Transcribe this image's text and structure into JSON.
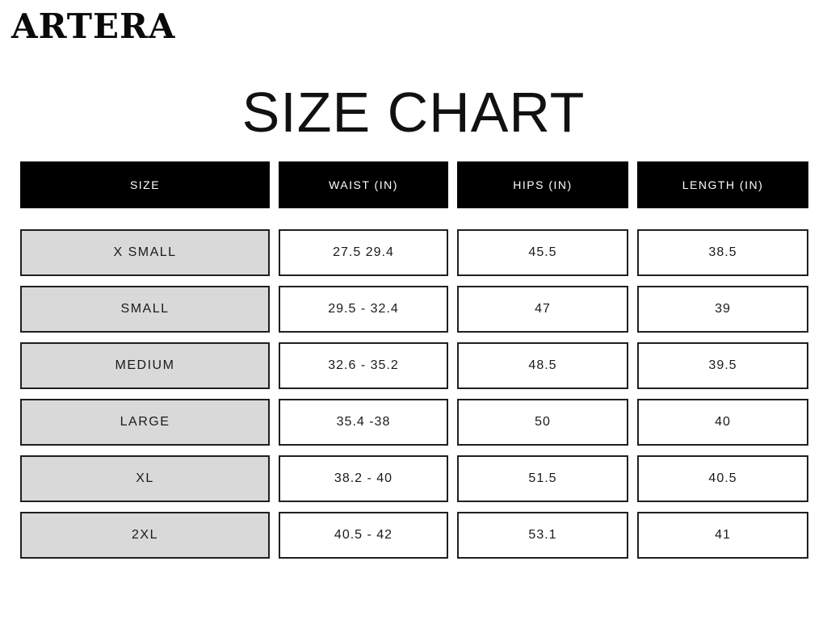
{
  "brand": {
    "logo": "ARTERA"
  },
  "page": {
    "title": "SIZE CHART"
  },
  "table": {
    "columns": [
      "SIZE",
      "WAIST (IN)",
      "HIPS (IN)",
      "LENGTH (IN)"
    ],
    "rows": [
      {
        "size": "X SMALL",
        "waist": "27.5 29.4",
        "hips": "45.5",
        "length": "38.5"
      },
      {
        "size": "SMALL",
        "waist": "29.5 - 32.4",
        "hips": "47",
        "length": "39"
      },
      {
        "size": "MEDIUM",
        "waist": "32.6 - 35.2",
        "hips": "48.5",
        "length": "39.5"
      },
      {
        "size": "LARGE",
        "waist": "35.4 -38",
        "hips": "50",
        "length": "40"
      },
      {
        "size": "XL",
        "waist": "38.2 - 40",
        "hips": "51.5",
        "length": "40.5"
      },
      {
        "size": "2XL",
        "waist": "40.5 - 42",
        "hips": "53.1",
        "length": "41"
      }
    ]
  },
  "colors": {
    "background": "#ffffff",
    "header_bg": "#000000",
    "header_text": "#ffffff",
    "size_cell_bg": "#d9d9d9",
    "cell_border": "#1f1f1f",
    "text": "#1a1a1a"
  }
}
